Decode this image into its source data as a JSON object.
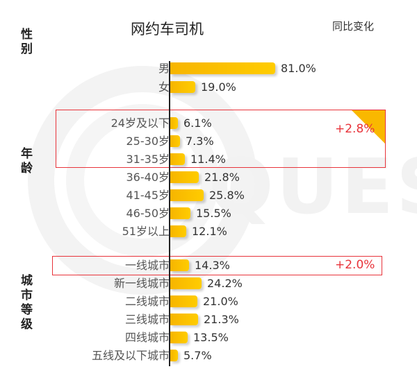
{
  "header": {
    "title": "网约车司机",
    "yoy_label": "同比变化"
  },
  "sections": {
    "gender": {
      "label": "性别"
    },
    "age": {
      "label": "年龄"
    },
    "city": {
      "label": "城市等级"
    }
  },
  "rows": [
    {
      "label": "男",
      "value": "81.0%"
    },
    {
      "label": "女",
      "value": "19.0%"
    },
    {
      "label": "24岁及以下",
      "value": "6.1%"
    },
    {
      "label": "25-30岁",
      "value": "7.3%"
    },
    {
      "label": "31-35岁",
      "value": "11.4%"
    },
    {
      "label": "36-40岁",
      "value": "21.8%"
    },
    {
      "label": "41-45岁",
      "value": "25.8%"
    },
    {
      "label": "46-50岁",
      "value": "15.5%"
    },
    {
      "label": "51岁以上",
      "value": "12.1%"
    },
    {
      "label": "一线城市",
      "value": "14.3%"
    },
    {
      "label": "新一线城市",
      "value": "24.2%"
    },
    {
      "label": "二线城市",
      "value": "21.0%"
    },
    {
      "label": "三线城市",
      "value": "21.3%"
    },
    {
      "label": "四线城市",
      "value": "13.5%"
    },
    {
      "label": "五线及以下城市",
      "value": "5.7%"
    }
  ],
  "highlights": {
    "age_under35": {
      "change": "+2.8%"
    },
    "tier1_city": {
      "change": "+2.0%"
    }
  },
  "colors": {
    "bar": "#ffc000",
    "highlight": "#e8333a"
  },
  "chart_data": {
    "type": "bar",
    "orientation": "horizontal",
    "title": "网约车司机",
    "xlabel": "",
    "ylabel": "",
    "groups": [
      {
        "name": "性别",
        "categories": [
          "男",
          "女"
        ],
        "values": [
          81.0,
          19.0
        ]
      },
      {
        "name": "年龄",
        "categories": [
          "24岁及以下",
          "25-30岁",
          "31-35岁",
          "36-40岁",
          "41-45岁",
          "46-50岁",
          "51岁以上"
        ],
        "values": [
          6.1,
          7.3,
          11.4,
          21.8,
          25.8,
          15.5,
          12.1
        ]
      },
      {
        "name": "城市等级",
        "categories": [
          "一线城市",
          "新一线城市",
          "二线城市",
          "三线城市",
          "四线城市",
          "五线及以下城市"
        ],
        "values": [
          14.3,
          24.2,
          21.0,
          21.3,
          13.5,
          5.7
        ]
      }
    ],
    "annotations": [
      {
        "label": "同比变化",
        "target": [
          "24岁及以下",
          "25-30岁",
          "31-35岁"
        ],
        "value": "+2.8%"
      },
      {
        "label": "同比变化",
        "target": [
          "一线城市"
        ],
        "value": "+2.0%"
      }
    ],
    "unit": "%"
  }
}
